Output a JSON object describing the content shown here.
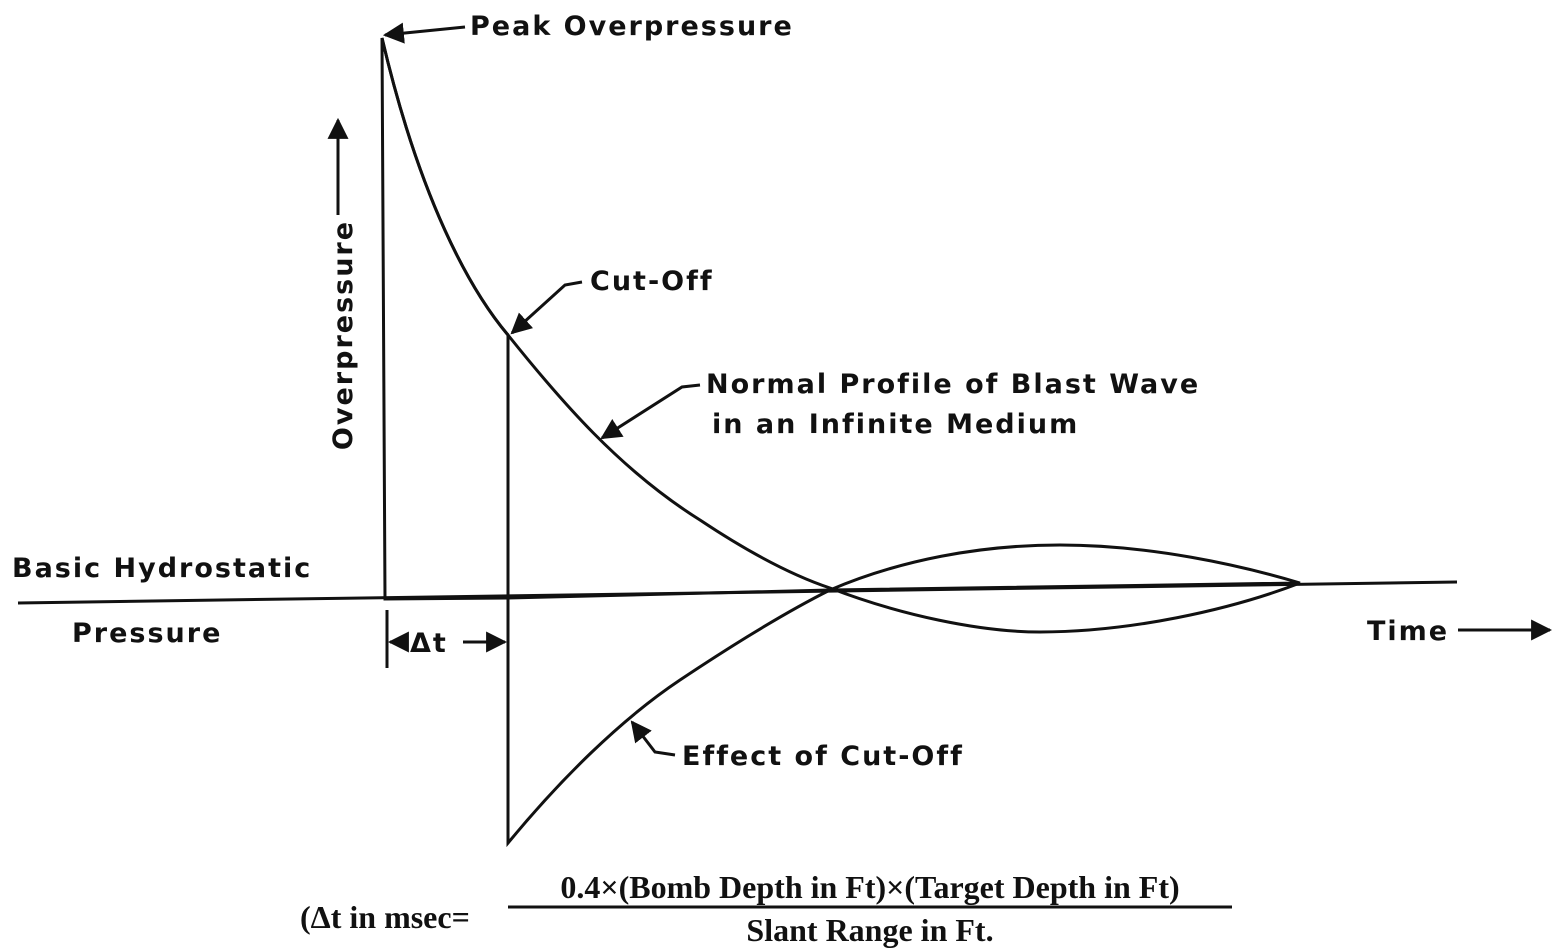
{
  "labels": {
    "peak": "Peak Overpressure",
    "y_axis": "Overpressure",
    "cut_off": "Cut-Off",
    "normal_profile": [
      "Normal Profile of Blast Wave",
      "in an Infinite Medium"
    ],
    "hydrostatic": [
      "Basic Hydrostatic",
      "Pressure"
    ],
    "delta_t": "Δt",
    "time": "Time",
    "effect": "Effect of Cut-Off"
  },
  "formula": {
    "lhs": "(Δt in msec=",
    "numerator": "0.4×(Bomb Depth in Ft)×(Target Depth in Ft)",
    "denominator": "Slant Range in Ft."
  }
}
